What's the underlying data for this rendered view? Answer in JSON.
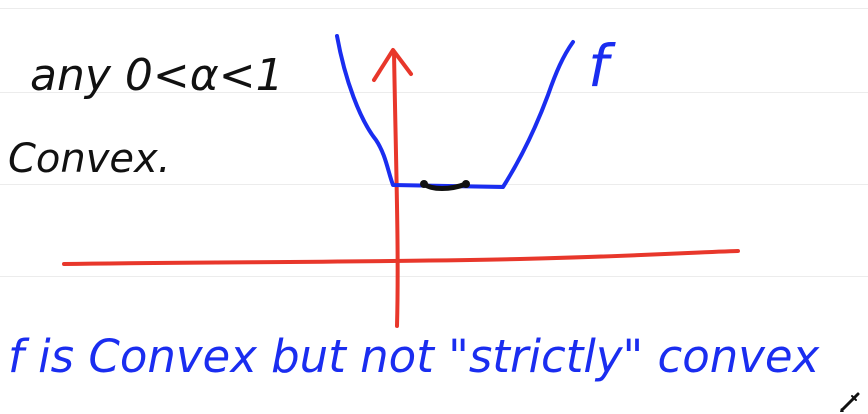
{
  "notes": {
    "line1": "any 0<α<1",
    "line2": "Convex.",
    "function_label": "f",
    "caption": "f is Convex but not \"strictly\" convex"
  },
  "colors": {
    "black_ink": "#111111",
    "blue_ink": "#1a2df0",
    "red_ink": "#e8372b",
    "rule": "#ececec"
  },
  "icons": {
    "corner_tool": "pen-icon"
  }
}
